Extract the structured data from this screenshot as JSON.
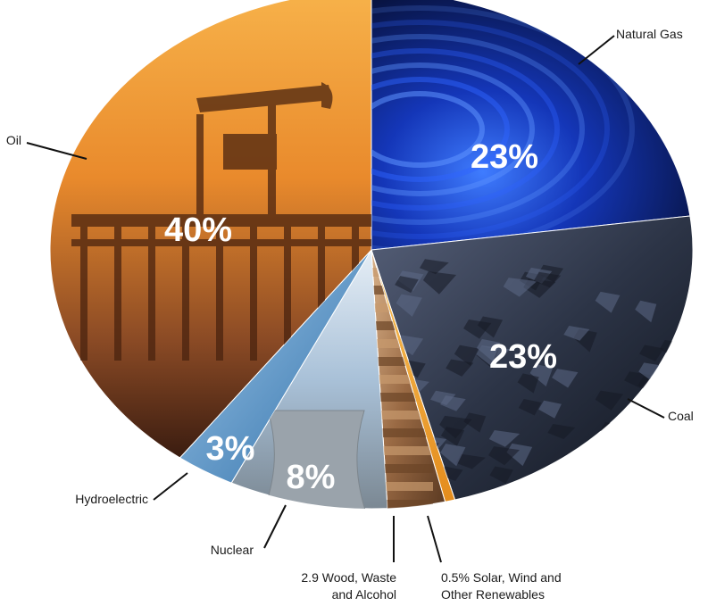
{
  "chart_data": {
    "type": "pie",
    "start": "top",
    "direction": "clockwise",
    "slices": [
      {
        "label": "Natural Gas",
        "value": 23,
        "value_label": "23%",
        "color": "#0b1f6e"
      },
      {
        "label": "Coal",
        "value": 23,
        "value_label": "23%",
        "color": "#2a3242"
      },
      {
        "label": "0.5% Solar, Wind and Other Renewables",
        "label_lines": [
          "0.5% Solar, Wind and",
          "Other Renewables"
        ],
        "value": 0.5,
        "value_label": "",
        "color": "#f5a623"
      },
      {
        "label": "2.9 Wood, Waste and Alcohol",
        "label_lines": [
          "2.9 Wood, Waste",
          "and Alcohol"
        ],
        "value": 2.9,
        "value_label": "",
        "color": "#9a6a44"
      },
      {
        "label": "Nuclear",
        "value": 8,
        "value_label": "8%",
        "color": "#7fa6c8"
      },
      {
        "label": "Hydroelectric",
        "value": 3,
        "value_label": "3%",
        "color": "#4f8fc2"
      },
      {
        "label": "Oil",
        "value": 40,
        "value_label": "40%",
        "color": "#e98a2c"
      }
    ]
  }
}
